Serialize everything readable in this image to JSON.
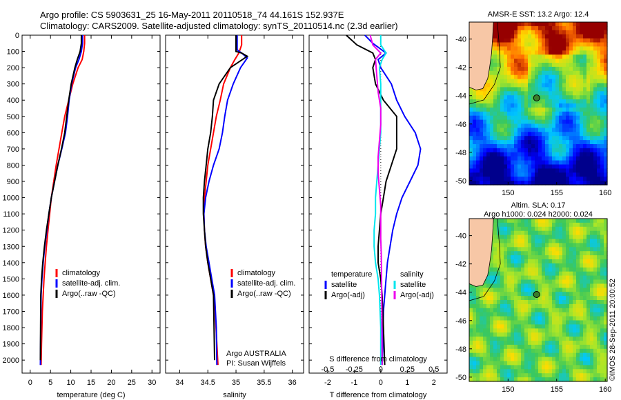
{
  "header": {
    "line1": "Argo profile: CS 5903631_25 16-May-2011 20110518_74 44.161S 152.937E",
    "line2": "Climatology: CARS2009. Satellite-adjusted climatology: synTS_20110514.nc (2.3d earlier)"
  },
  "side_credit": "©IMOS 28-Sep-2011 20:00:52",
  "colors": {
    "climatology": "#ff0000",
    "satellite": "#0000ff",
    "argo": "#000000",
    "sat_salinity": "#00e5ee",
    "argo_salinity": "#ee00ee",
    "land": "#f7c7a6"
  },
  "chart_data": [
    {
      "type": "line",
      "xlabel": "temperature (deg C)",
      "ylabel": "",
      "xlim": [
        -2,
        32
      ],
      "ylim": [
        0,
        2080
      ],
      "xticks": [
        "0",
        "5",
        "10",
        "15",
        "20",
        "25",
        "30"
      ],
      "xtick_values": [
        0,
        5,
        10,
        15,
        20,
        25,
        30
      ],
      "yticks": [
        "0",
        "100",
        "200",
        "300",
        "400",
        "500",
        "600",
        "700",
        "800",
        "900",
        "1000",
        "1100",
        "1200",
        "1300",
        "1400",
        "1500",
        "1600",
        "1700",
        "1800",
        "1900",
        "2000"
      ],
      "ytick_values": [
        0,
        100,
        200,
        300,
        400,
        500,
        600,
        700,
        800,
        900,
        1000,
        1100,
        1200,
        1300,
        1400,
        1500,
        1600,
        1700,
        1800,
        1900,
        2000
      ],
      "legend": [
        "climatology",
        "satellite-adj. clim.",
        "Argo(..raw -QC)"
      ],
      "series": [
        {
          "name": "climatology",
          "color": "#ff0000",
          "x": [
            13.4,
            13.4,
            13.2,
            12.8,
            11.8,
            10.5,
            9.5,
            8.5,
            7.8,
            7.1,
            6.4,
            5.8,
            5.2,
            4.8,
            4.4,
            4.0,
            3.7,
            3.4,
            3.2,
            3.0,
            2.8,
            2.7
          ],
          "y": [
            0,
            50,
            100,
            150,
            200,
            300,
            400,
            500,
            600,
            700,
            800,
            900,
            1000,
            1100,
            1200,
            1300,
            1400,
            1500,
            1600,
            1700,
            1900,
            2030
          ]
        },
        {
          "name": "satellite-adj. clim.",
          "color": "#0000ff",
          "x": [
            12.9,
            12.9,
            12.6,
            12.0,
            11.2,
            10.2,
            9.6,
            9.2,
            8.7,
            7.8,
            6.8,
            6.0,
            5.2,
            4.6,
            4.1,
            3.6,
            3.2,
            2.9,
            2.7,
            2.6,
            2.5
          ],
          "y": [
            0,
            50,
            100,
            150,
            200,
            300,
            400,
            500,
            600,
            700,
            800,
            900,
            1000,
            1100,
            1200,
            1300,
            1400,
            1500,
            1600,
            1800,
            2030
          ]
        },
        {
          "name": "Argo(..raw -QC)",
          "color": "#000000",
          "x": [
            12.6,
            12.6,
            12.3,
            11.6,
            11.0,
            10.1,
            9.5,
            9.0,
            8.5,
            7.7,
            6.8,
            6.0,
            5.2,
            4.6,
            4.0,
            3.5,
            3.1,
            2.8,
            2.6,
            2.5
          ],
          "y": [
            0,
            50,
            100,
            150,
            200,
            300,
            400,
            500,
            600,
            700,
            800,
            900,
            1000,
            1100,
            1200,
            1300,
            1400,
            1500,
            1600,
            2000
          ]
        }
      ]
    },
    {
      "type": "line",
      "xlabel": "salinity",
      "xlim": [
        33.75,
        36.2
      ],
      "ylim": [
        0,
        2080
      ],
      "xticks": [
        "34",
        "34.5",
        "35",
        "35.5",
        "36"
      ],
      "xtick_values": [
        34,
        34.5,
        35,
        35.5,
        36
      ],
      "legend": [
        "climatology",
        "satellite-adj. clim.",
        "Argo(..raw -QC)"
      ],
      "annotation": [
        "Argo AUSTRALIA",
        "PI: Susan Wijffels"
      ],
      "series": [
        {
          "name": "climatology",
          "color": "#ff0000",
          "x": [
            35.1,
            35.1,
            35.05,
            34.98,
            34.9,
            34.78,
            34.72,
            34.65,
            34.6,
            34.55,
            34.5,
            34.47,
            34.44,
            34.43,
            34.44,
            34.46,
            34.5,
            34.55,
            34.6,
            34.63,
            34.66,
            34.68
          ],
          "y": [
            0,
            60,
            110,
            150,
            200,
            300,
            400,
            500,
            600,
            700,
            800,
            900,
            1000,
            1100,
            1200,
            1300,
            1400,
            1500,
            1600,
            1700,
            1900,
            2030
          ]
        },
        {
          "name": "satellite-adj. clim.",
          "color": "#0000ff",
          "x": [
            35.02,
            35.02,
            35.1,
            35.2,
            35.08,
            34.95,
            34.85,
            34.8,
            34.76,
            34.7,
            34.6,
            34.52,
            34.46,
            34.43,
            34.44,
            34.47,
            34.52,
            34.57,
            34.62,
            34.65,
            34.66
          ],
          "y": [
            0,
            90,
            110,
            140,
            200,
            300,
            400,
            500,
            600,
            700,
            800,
            900,
            1000,
            1100,
            1200,
            1300,
            1400,
            1500,
            1600,
            1800,
            2030
          ]
        },
        {
          "name": "Argo(..raw -QC)",
          "color": "#000000",
          "x": [
            35.0,
            35.0,
            35.1,
            35.2,
            34.9,
            34.7,
            34.6,
            34.58,
            34.55,
            34.5,
            34.47,
            34.44,
            34.42,
            34.42,
            34.44,
            34.46,
            34.5,
            34.55,
            34.6,
            34.62
          ],
          "y": [
            0,
            100,
            110,
            130,
            200,
            300,
            400,
            500,
            600,
            700,
            800,
            900,
            1000,
            1100,
            1200,
            1300,
            1400,
            1500,
            1600,
            2000
          ]
        }
      ]
    },
    {
      "type": "line",
      "xlabel": "T difference from climatology",
      "xlabel_top": "S difference from climatology",
      "xlim": [
        -2.7,
        2.5
      ],
      "ylim": [
        0,
        2080
      ],
      "xticks": [
        "-2",
        "-1",
        "0",
        "1",
        "2"
      ],
      "xtick_values": [
        -2,
        -1,
        0,
        1,
        2
      ],
      "sticks": [
        "-0.5",
        "-0.25",
        "0",
        "0.25",
        "0.5"
      ],
      "stick_values": [
        -0.5,
        -0.25,
        0,
        0.25,
        0.5
      ],
      "legend_groups": [
        [
          "temperature",
          "satellite",
          "Argo(-adj)"
        ],
        [
          "salinity",
          "satellite",
          "Argo(-adj)"
        ]
      ],
      "series": [
        {
          "name": "satellite",
          "color": "#0000ff",
          "x": [
            -0.6,
            -0.3,
            0.2,
            -0.1,
            0.0,
            0.4,
            0.6,
            0.9,
            1.3,
            1.5,
            1.4,
            1.1,
            0.8,
            0.6,
            0.45,
            0.35,
            0.25,
            0.2,
            0.15,
            0.1,
            0.08,
            0.05
          ],
          "y": [
            0,
            50,
            110,
            150,
            200,
            300,
            400,
            500,
            600,
            700,
            800,
            900,
            1000,
            1100,
            1200,
            1300,
            1400,
            1500,
            1600,
            1700,
            1900,
            2030
          ]
        },
        {
          "name": "Argo(-adj)",
          "color": "#000000",
          "x": [
            -1.3,
            -0.9,
            -0.3,
            -0.2,
            -0.3,
            -0.2,
            0.1,
            0.6,
            0.6,
            0.6,
            0.4,
            0.2,
            0.1,
            0.0,
            -0.05,
            -0.1,
            -0.1,
            0.0,
            0.05,
            0.1,
            0.15
          ],
          "y": [
            0,
            60,
            110,
            150,
            200,
            300,
            400,
            500,
            600,
            700,
            800,
            900,
            1000,
            1100,
            1200,
            1300,
            1400,
            1500,
            1600,
            1800,
            2030
          ]
        },
        {
          "name": "satellite",
          "color": "#00e5ee",
          "x": [
            0.0,
            0.0,
            0.2,
            0.05,
            -0.05,
            0.0,
            0.0,
            0.0,
            0.0,
            -0.05,
            -0.1,
            -0.15,
            -0.2,
            -0.2,
            -0.25,
            -0.25,
            -0.2,
            -0.1,
            -0.05,
            0.0,
            0.0
          ],
          "y": [
            0,
            60,
            110,
            150,
            200,
            300,
            400,
            500,
            600,
            700,
            800,
            900,
            1000,
            1100,
            1200,
            1300,
            1400,
            1500,
            1600,
            1800,
            2030
          ]
        },
        {
          "name": "Argo(-adj)",
          "color": "#ee00ee",
          "x": [
            -0.4,
            -0.3,
            0.0,
            -0.2,
            -0.15,
            -0.1,
            0.0,
            0.0,
            -0.05,
            -0.1,
            -0.1,
            -0.05,
            0.0,
            0.0,
            0.0,
            0.02,
            0.03,
            0.04,
            0.05
          ],
          "y": [
            0,
            60,
            110,
            150,
            250,
            350,
            450,
            550,
            650,
            750,
            850,
            950,
            1050,
            1150,
            1250,
            1350,
            1500,
            1700,
            2030
          ]
        }
      ]
    },
    {
      "type": "heatmap",
      "title": "AMSR-E SST: 13.2 Argo: 12.4",
      "xlim": [
        146,
        160.2
      ],
      "ylim": [
        -50.3,
        -38.8
      ],
      "xticks": [
        "150",
        "155",
        "160"
      ],
      "xtick_values": [
        150,
        155,
        160
      ],
      "yticks": [
        "-40",
        "-42",
        "-44",
        "-46",
        "-48",
        "-50"
      ],
      "ytick_values": [
        -40,
        -42,
        -44,
        -46,
        -48,
        -50
      ],
      "marker": {
        "lon": 152.937,
        "lat": -44.161
      }
    },
    {
      "type": "heatmap",
      "title": "Altim. SLA: 0.17",
      "subtitle": "Argo h1000: 0.024 h2000: 0.024",
      "xlim": [
        146,
        160.2
      ],
      "ylim": [
        -50.3,
        -38.8
      ],
      "xticks": [
        "150",
        "155",
        "160"
      ],
      "xtick_values": [
        150,
        155,
        160
      ],
      "yticks": [
        "-40",
        "-42",
        "-44",
        "-46",
        "-48",
        "-50"
      ],
      "ytick_values": [
        -40,
        -42,
        -44,
        -46,
        -48,
        -50
      ],
      "marker": {
        "lon": 152.937,
        "lat": -44.161
      }
    }
  ]
}
